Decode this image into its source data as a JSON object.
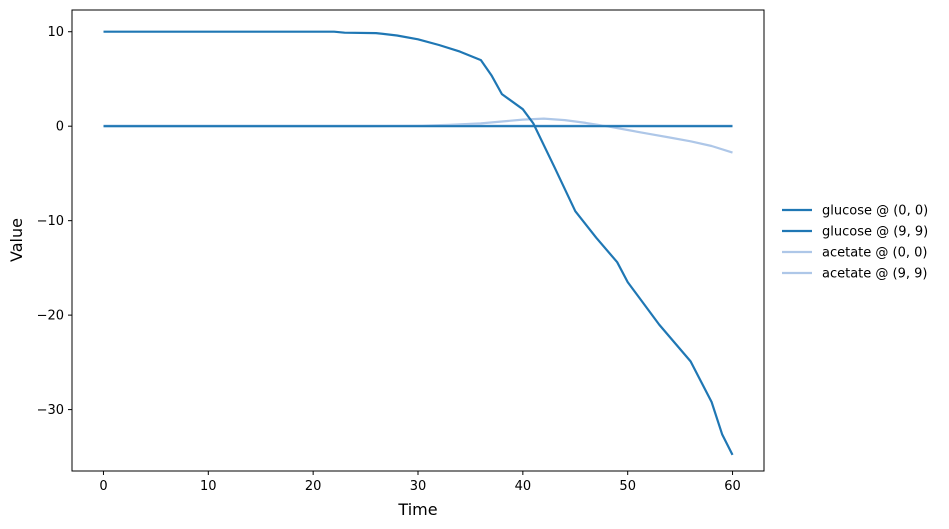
{
  "chart_data": {
    "type": "line",
    "xlabel": "Time",
    "ylabel": "Value",
    "xlim": [
      -3,
      63
    ],
    "ylim": [
      -36.5,
      12.3
    ],
    "xticks": [
      0,
      10,
      20,
      30,
      40,
      50,
      60
    ],
    "xtick_labels": [
      "0",
      "10",
      "20",
      "30",
      "40",
      "50",
      "60"
    ],
    "yticks": [
      10,
      0,
      -10,
      -20,
      -30
    ],
    "ytick_labels": [
      "10",
      "0",
      "−10",
      "−20",
      "−30"
    ],
    "grid": false,
    "legend_position": "right",
    "series": [
      {
        "name": "glucose @ (0, 0)",
        "color": "#1f77b4",
        "x": [
          0,
          22,
          23,
          26,
          28,
          30,
          32,
          34,
          36,
          37,
          38,
          40,
          41,
          43,
          45,
          47,
          49,
          50,
          53,
          56,
          58,
          59,
          60
        ],
        "y": [
          10.0,
          10.0,
          9.9,
          9.85,
          9.6,
          9.2,
          8.6,
          7.9,
          7.0,
          5.4,
          3.4,
          1.8,
          0.3,
          -4.3,
          -9.0,
          -11.8,
          -14.4,
          -16.5,
          -21.0,
          -24.9,
          -29.2,
          -32.6,
          -34.8
        ]
      },
      {
        "name": "glucose @ (9, 9)",
        "color": "#1f77b4",
        "x": [
          0,
          60
        ],
        "y": [
          0.0,
          0.0
        ]
      },
      {
        "name": "acetate @ (0, 0)",
        "color": "#aec7e8",
        "x": [
          0,
          25,
          30,
          33,
          36,
          38,
          40,
          42,
          44,
          46,
          48,
          50,
          52,
          54,
          56,
          58,
          60
        ],
        "y": [
          0.0,
          0.0,
          0.05,
          0.15,
          0.3,
          0.5,
          0.7,
          0.8,
          0.65,
          0.35,
          0.0,
          -0.4,
          -0.8,
          -1.2,
          -1.6,
          -2.1,
          -2.8
        ]
      },
      {
        "name": "acetate @ (9, 9)",
        "color": "#aec7e8",
        "x": [
          0,
          60
        ],
        "y": [
          0.05,
          0.05
        ]
      }
    ]
  }
}
